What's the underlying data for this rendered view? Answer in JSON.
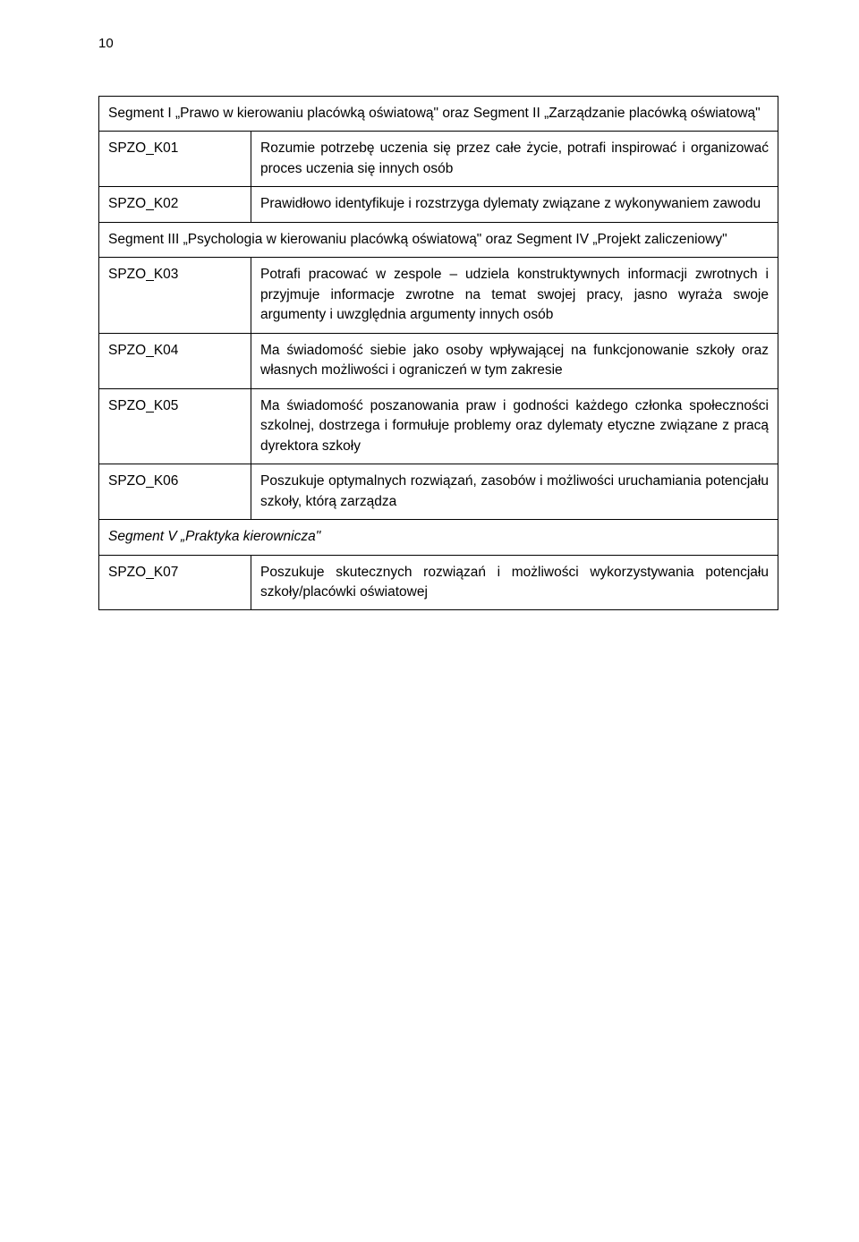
{
  "page_number": "10",
  "section1": {
    "header": "Segment I „Prawo w kierowaniu placówką oświatową\" oraz Segment II „Zarządzanie placówką oświatową\"",
    "rows": [
      {
        "code": "SPZO_K01",
        "desc": "Rozumie potrzebę uczenia się przez całe życie, potrafi inspirować i organizować proces uczenia się innych osób"
      },
      {
        "code": "SPZO_K02",
        "desc": "Prawidłowo identyfikuje i rozstrzyga dylematy związane z wykonywaniem zawodu"
      }
    ],
    "footer": "Segment III „Psychologia w kierowaniu placówką oświatową\" oraz Segment IV „Projekt zaliczeniowy\""
  },
  "section2": {
    "rows": [
      {
        "code": "SPZO_K03",
        "desc": "Potrafi pracować w zespole – udziela konstruktywnych informacji zwrotnych i przyjmuje informacje zwrotne na temat swojej pracy, jasno wyraża swoje argumenty i uwzględnia argumenty innych osób"
      },
      {
        "code": "SPZO_K04",
        "desc": "Ma świadomość siebie jako osoby wpływającej na funkcjonowanie szkoły oraz własnych możliwości i ograniczeń w tym zakresie"
      },
      {
        "code": "SPZO_K05",
        "desc": "Ma świadomość poszanowania praw i godności każdego członka społeczności szkolnej, dostrzega i formułuje problemy oraz dylematy etyczne związane z pracą dyrektora szkoły"
      },
      {
        "code": "SPZO_K06",
        "desc": "Poszukuje optymalnych rozwiązań, zasobów i możliwości uruchamiania potencjału szkoły, którą zarządza"
      }
    ]
  },
  "section3": {
    "header": "Segment V „Praktyka kierownicza\"",
    "rows": [
      {
        "code": "SPZO_K07",
        "desc": "Poszukuje skutecznych rozwiązań i możliwości wykorzystywania potencjału szkoły/placówki oświatowej"
      }
    ]
  }
}
